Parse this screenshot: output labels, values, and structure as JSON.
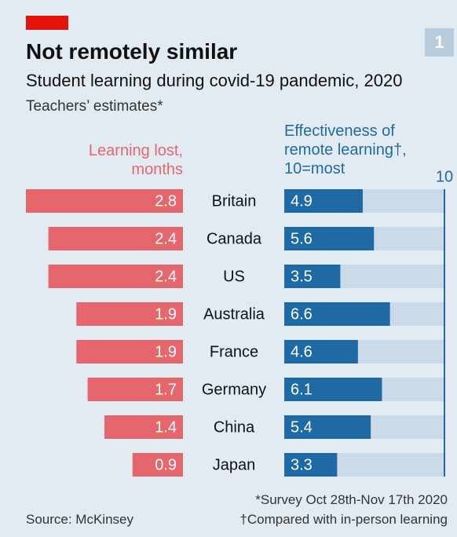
{
  "chart_data": {
    "type": "butterfly",
    "title": "Not remotely similar",
    "subtitle": "Student learning during covid-19 pandemic, 2020",
    "note": "Teachers’ estimates*",
    "badge": "1",
    "categories": [
      "Britain",
      "Canada",
      "US",
      "Australia",
      "France",
      "Germany",
      "China",
      "Japan"
    ],
    "series": [
      {
        "name": "Learning lost, months",
        "color": "#e5676b",
        "values": [
          2.8,
          2.4,
          2.4,
          1.9,
          1.9,
          1.7,
          1.4,
          0.9
        ]
      },
      {
        "name": "Effectiveness of remote learning†, 10=most",
        "color": "#1f6aa5",
        "axis": "x2",
        "values": [
          4.9,
          5.6,
          3.5,
          6.6,
          4.6,
          6.1,
          5.4,
          3.3
        ]
      }
    ],
    "xlim": [
      0,
      2.8
    ],
    "x2lim": [
      0,
      10
    ],
    "x2ticks": [
      10
    ],
    "footnotes": [
      "*Survey Oct 28th-Nov 17th 2020",
      "†Compared with in-person learning"
    ],
    "source": "Source: McKinsey"
  }
}
